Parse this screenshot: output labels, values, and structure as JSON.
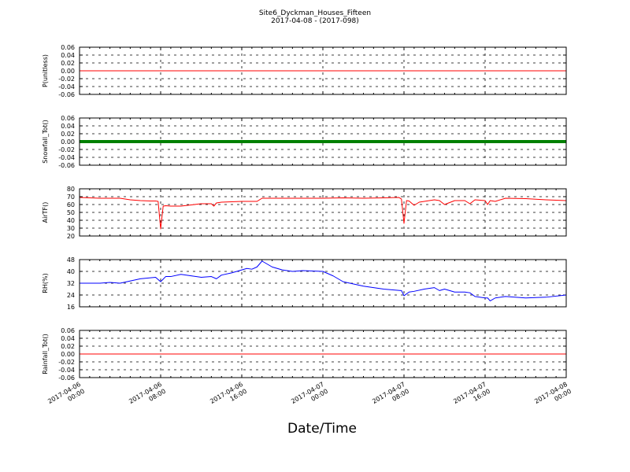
{
  "title": "Site6_Dyckman_Houses_Fifteen",
  "subtitle": "2017-04-08 - (2017-098)",
  "xlabel": "Date/Time",
  "x_ticks": [
    {
      "value": "2017-04-06 00:00",
      "line1": "2017-04-06",
      "line2": "00:00"
    },
    {
      "value": "2017-04-06 08:00",
      "line1": "2017-04-06",
      "line2": "08:00"
    },
    {
      "value": "2017-04-06 16:00",
      "line1": "2017-04-06",
      "line2": "16:00"
    },
    {
      "value": "2017-04-07 00:00",
      "line1": "2017-04-07",
      "line2": "00:00"
    },
    {
      "value": "2017-04-07 08:00",
      "line1": "2017-04-07",
      "line2": "08:00"
    },
    {
      "value": "2017-04-07 16:00",
      "line1": "2017-04-07",
      "line2": "16:00"
    },
    {
      "value": "2017-04-08 00:00",
      "line1": "2017-04-08",
      "line2": "00:00"
    }
  ],
  "chart_data": [
    {
      "type": "line",
      "ylabel": "P(unitless)",
      "ylim": [
        -0.06,
        0.06
      ],
      "yticks": [
        "0.06",
        "0.04",
        "0.02",
        "0.00",
        "-0.02",
        "-0.04",
        "-0.06"
      ],
      "ytick_values": [
        0.06,
        0.04,
        0.02,
        0.0,
        -0.02,
        -0.04,
        -0.06
      ],
      "grid": true,
      "color": "#ff0000",
      "style": "line",
      "x": [
        "2017-04-06 00:00",
        "2017-04-08 00:00"
      ],
      "y": [
        0,
        0
      ]
    },
    {
      "type": "scatter",
      "ylabel": "Snowfall_Tot()",
      "ylim": [
        -0.06,
        0.06
      ],
      "yticks": [
        "0.06",
        "0.04",
        "0.02",
        "0.00",
        "-0.02",
        "-0.04",
        "-0.06"
      ],
      "ytick_values": [
        0.06,
        0.04,
        0.02,
        0.0,
        -0.02,
        -0.04,
        -0.06
      ],
      "grid": true,
      "color": "#008000",
      "style": "thick",
      "x": [
        "2017-04-06 00:00",
        "2017-04-08 00:00"
      ],
      "y": [
        0,
        0
      ]
    },
    {
      "type": "line",
      "ylabel": "AirTF()",
      "ylim": [
        20,
        80
      ],
      "yticks": [
        "80",
        "70",
        "60",
        "50",
        "40",
        "30",
        "20"
      ],
      "ytick_values": [
        80,
        70,
        60,
        50,
        40,
        30,
        20
      ],
      "grid": true,
      "color": "#ff0000",
      "style": "line",
      "x": [
        "2017-04-06 00:00",
        "2017-04-06 02:00",
        "2017-04-06 04:00",
        "2017-04-06 05:00",
        "2017-04-06 06:00",
        "2017-04-06 07:00",
        "2017-04-06 07:30",
        "2017-04-06 07:45",
        "2017-04-06 08:00",
        "2017-04-06 08:15",
        "2017-04-06 08:30",
        "2017-04-06 09:00",
        "2017-04-06 10:00",
        "2017-04-06 11:00",
        "2017-04-06 12:00",
        "2017-04-06 13:00",
        "2017-04-06 13:15",
        "2017-04-06 13:30",
        "2017-04-06 14:00",
        "2017-04-06 16:00",
        "2017-04-06 17:00",
        "2017-04-06 17:30",
        "2017-04-06 18:00",
        "2017-04-06 20:00",
        "2017-04-07 00:00",
        "2017-04-07 02:00",
        "2017-04-07 04:00",
        "2017-04-07 06:00",
        "2017-04-07 07:30",
        "2017-04-07 07:45",
        "2017-04-07 08:00",
        "2017-04-07 08:15",
        "2017-04-07 08:30",
        "2017-04-07 09:00",
        "2017-04-07 09:30",
        "2017-04-07 10:00",
        "2017-04-07 11:00",
        "2017-04-07 11:30",
        "2017-04-07 12:00",
        "2017-04-07 13:00",
        "2017-04-07 14:00",
        "2017-04-07 14:30",
        "2017-04-07 15:00",
        "2017-04-07 16:00",
        "2017-04-07 16:15",
        "2017-04-07 16:30",
        "2017-04-07 17:00",
        "2017-04-07 18:00",
        "2017-04-07 20:00",
        "2017-04-07 22:00",
        "2017-04-08 00:00"
      ],
      "y": [
        69,
        68,
        68,
        66,
        65,
        64.5,
        64.5,
        64,
        29,
        58,
        58.5,
        58,
        58,
        59.5,
        61,
        61,
        58,
        62,
        63,
        64,
        64,
        64,
        68,
        68,
        68,
        68.5,
        68,
        68.5,
        69,
        67,
        36,
        65,
        64.5,
        59,
        63,
        64,
        66,
        65,
        60,
        65,
        65,
        61,
        66,
        65,
        60,
        65,
        64,
        68,
        67.5,
        66,
        65
      ]
    },
    {
      "type": "line",
      "ylabel": "RH(%)",
      "ylim": [
        16,
        48
      ],
      "yticks": [
        "48",
        "40",
        "32",
        "24",
        "16"
      ],
      "ytick_values": [
        48,
        40,
        32,
        24,
        16
      ],
      "grid": true,
      "color": "#0000ff",
      "style": "line",
      "x": [
        "2017-04-06 00:00",
        "2017-04-06 01:00",
        "2017-04-06 02:00",
        "2017-04-06 03:00",
        "2017-04-06 04:00",
        "2017-04-06 06:00",
        "2017-04-06 07:30",
        "2017-04-06 08:00",
        "2017-04-06 08:30",
        "2017-04-06 09:00",
        "2017-04-06 10:00",
        "2017-04-06 11:00",
        "2017-04-06 12:00",
        "2017-04-06 13:00",
        "2017-04-06 13:30",
        "2017-04-06 14:00",
        "2017-04-06 15:00",
        "2017-04-06 16:00",
        "2017-04-06 16:30",
        "2017-04-06 17:00",
        "2017-04-06 17:30",
        "2017-04-06 18:00",
        "2017-04-06 19:00",
        "2017-04-06 20:00",
        "2017-04-06 21:00",
        "2017-04-06 22:00",
        "2017-04-07 00:00",
        "2017-04-07 01:00",
        "2017-04-07 02:00",
        "2017-04-07 04:00",
        "2017-04-07 06:00",
        "2017-04-07 07:45",
        "2017-04-07 08:00",
        "2017-04-07 08:30",
        "2017-04-07 09:00",
        "2017-04-07 10:00",
        "2017-04-07 11:00",
        "2017-04-07 11:30",
        "2017-04-07 12:00",
        "2017-04-07 13:00",
        "2017-04-07 14:00",
        "2017-04-07 14:30",
        "2017-04-07 15:00",
        "2017-04-07 16:00",
        "2017-04-07 16:15",
        "2017-04-07 16:30",
        "2017-04-07 17:00",
        "2017-04-07 18:00",
        "2017-04-07 20:00",
        "2017-04-07 22:00",
        "2017-04-08 00:00"
      ],
      "y": [
        32,
        32,
        32,
        32.5,
        32,
        35,
        36,
        33,
        36.5,
        36.5,
        38,
        37,
        36,
        36.5,
        35,
        37.5,
        39,
        41,
        42,
        41.5,
        43,
        47,
        43,
        41,
        40,
        40.5,
        40,
        37,
        33,
        30,
        28,
        27,
        23.5,
        26,
        26.5,
        28,
        29,
        27,
        28,
        26,
        26,
        25.5,
        23,
        22,
        22,
        20,
        22,
        23,
        22,
        22.5,
        24
      ]
    },
    {
      "type": "line",
      "ylabel": "Rainfall_Tot()",
      "ylim": [
        -0.06,
        0.06
      ],
      "yticks": [
        "0.06",
        "0.04",
        "0.02",
        "0.00",
        "-0.02",
        "-0.04",
        "-0.06"
      ],
      "ytick_values": [
        0.06,
        0.04,
        0.02,
        0.0,
        -0.02,
        -0.04,
        -0.06
      ],
      "grid": true,
      "color": "#ff0000",
      "style": "line",
      "x": [
        "2017-04-06 00:00",
        "2017-04-08 00:00"
      ],
      "y": [
        0,
        0
      ]
    }
  ]
}
